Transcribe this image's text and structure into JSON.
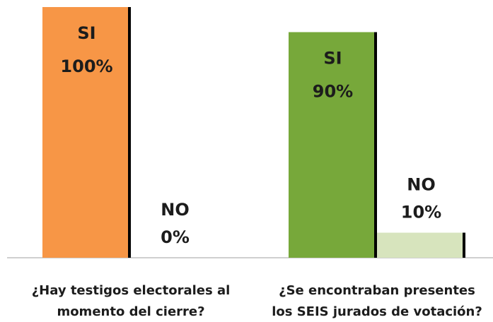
{
  "chart_data": {
    "type": "bar",
    "categories": [
      [
        "¿Hay testigos electorales al",
        "momento del cierre?"
      ],
      [
        "¿Se encontraban presentes",
        "los SEIS jurados de votación?"
      ]
    ],
    "series": [
      {
        "name": "SI",
        "colors": [
          "#f79646",
          "#77a83a"
        ],
        "values": [
          100,
          90
        ],
        "value_labels": [
          "100%",
          "90%"
        ]
      },
      {
        "name": "NO",
        "colors": [
          "#d7e4bd",
          "#d7e4bd"
        ],
        "values": [
          0,
          10
        ],
        "value_labels": [
          "0%",
          "10%"
        ]
      }
    ],
    "ylim": [
      0,
      100
    ]
  }
}
